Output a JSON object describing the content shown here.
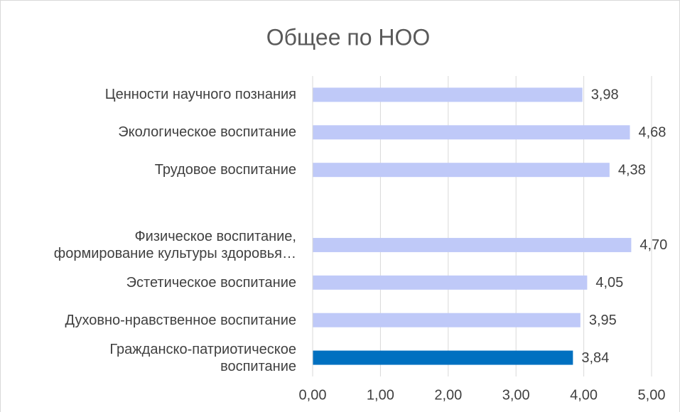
{
  "chart_data": {
    "type": "hbar",
    "title": "Общее по НОО",
    "categories": [
      "Ценности научного познания",
      "Экологическое воспитание",
      "Трудовое воспитание",
      null,
      "Физическое воспитание,\nформирование культуры здоровья…",
      "Эстетическое воспитание",
      "Духовно-нравственное воспитание",
      "Гражданско-патриотическое\nвоспитание"
    ],
    "values": [
      3.98,
      4.68,
      4.38,
      null,
      4.7,
      4.05,
      3.95,
      3.84
    ],
    "value_labels": [
      "3,98",
      "4,68",
      "4,38",
      null,
      "4,70",
      "4,05",
      "3,95",
      "3,84"
    ],
    "colors": [
      "#bfc9f8",
      "#bfc9f8",
      "#bfc9f8",
      null,
      "#bfc9f8",
      "#bfc9f8",
      "#bfc9f8",
      "#0070c0"
    ],
    "xlim": [
      0,
      5
    ],
    "xticks": [
      {
        "value": 0,
        "label": "0,00"
      },
      {
        "value": 1,
        "label": "1,00"
      },
      {
        "value": 2,
        "label": "2,00"
      },
      {
        "value": 3,
        "label": "3,00"
      },
      {
        "value": 4,
        "label": "4,00"
      },
      {
        "value": 5,
        "label": "5,00"
      }
    ],
    "grid": true
  }
}
